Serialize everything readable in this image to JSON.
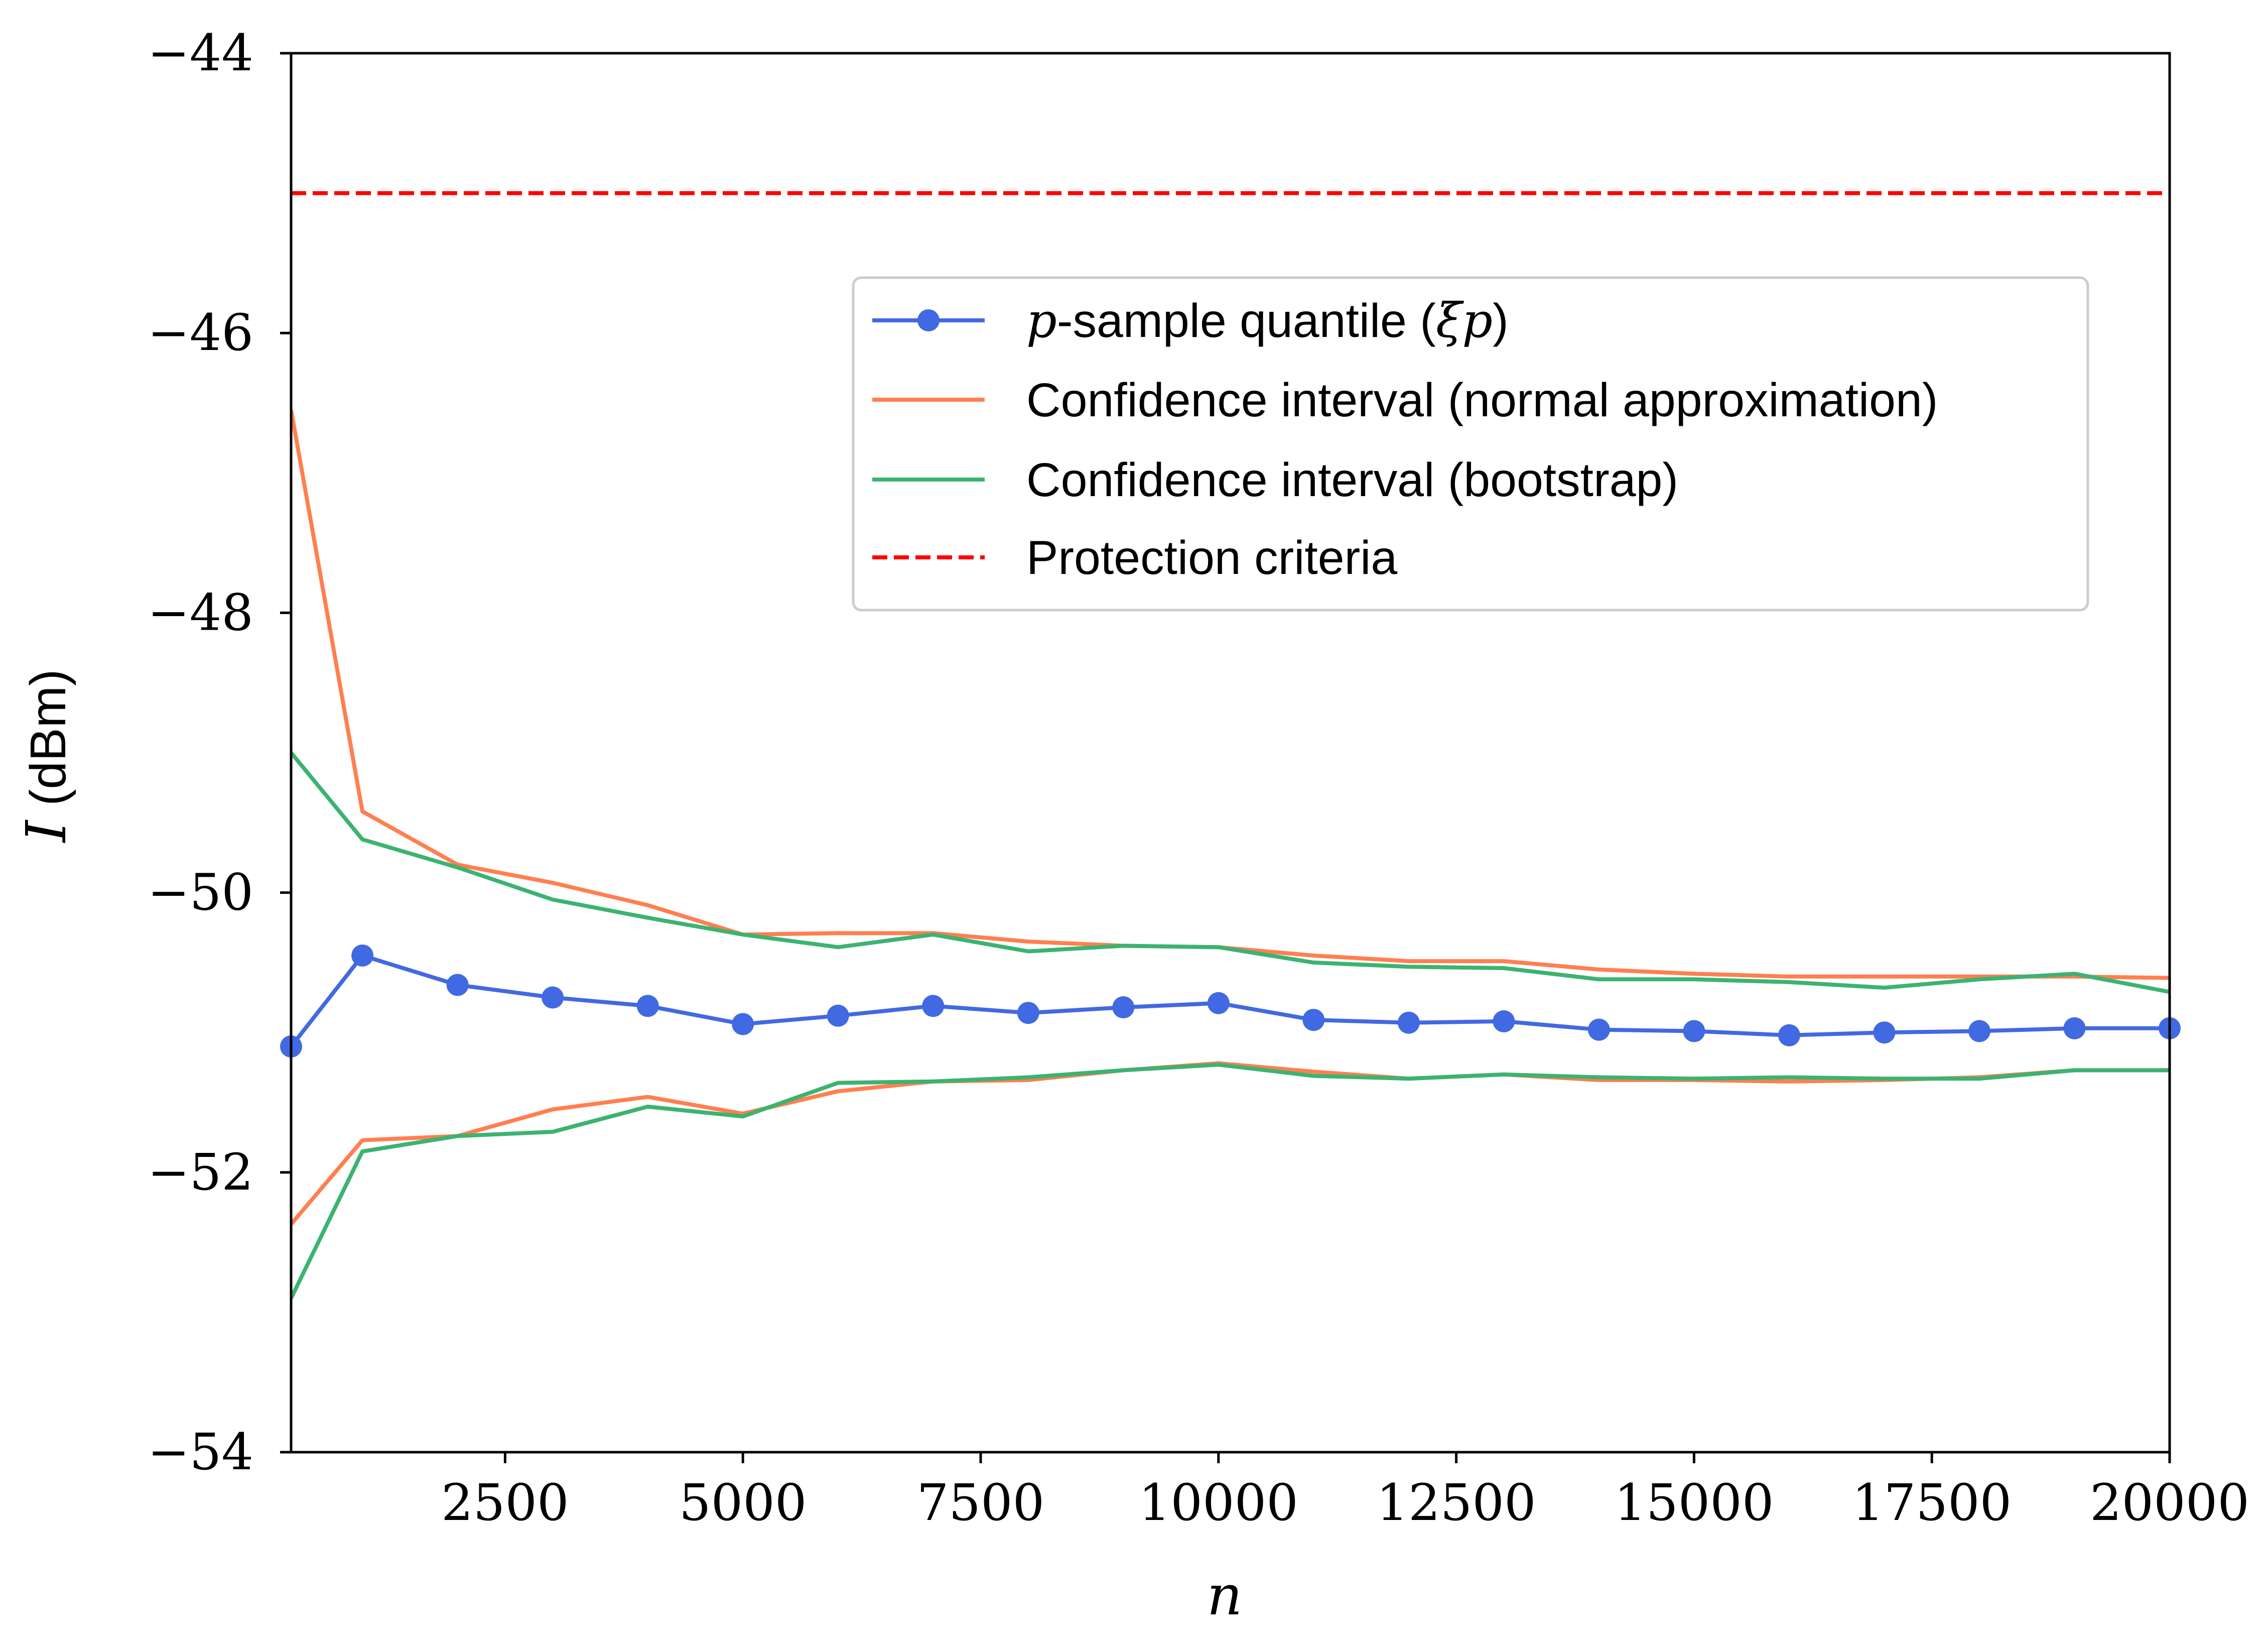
{
  "chart_data": {
    "type": "line",
    "title": "",
    "xlabel": "n",
    "ylabel_symbol": "I",
    "ylabel_unit": "(dBm)",
    "xlim": [
      250,
      20000
    ],
    "ylim": [
      -54,
      -44
    ],
    "xticks": [
      2500,
      5000,
      7500,
      10000,
      12500,
      15000,
      17500,
      20000
    ],
    "xtick_labels": [
      "2500",
      "5000",
      "7500",
      "10000",
      "12500",
      "15000",
      "17500",
      "20000"
    ],
    "yticks": [
      -54,
      -52,
      -50,
      -48,
      -46,
      -44
    ],
    "ytick_labels": [
      "−54",
      "−52",
      "−50",
      "−48",
      "−46",
      "−44"
    ],
    "grid": false,
    "legend_position": "upper-right",
    "x": [
      250,
      1000,
      2000,
      3000,
      4000,
      5000,
      6000,
      7000,
      8000,
      9000,
      10000,
      11000,
      12000,
      13000,
      14000,
      15000,
      16000,
      17000,
      18000,
      19000,
      20000
    ],
    "series": [
      {
        "key": "quantile",
        "legend_math": "p",
        "legend_text": "-sample quantile (",
        "legend_math_end": "ξp",
        "legend_close": ")",
        "color": "#4169e1",
        "style": "solid-markers",
        "values": [
          -51.1,
          -50.45,
          -50.66,
          -50.75,
          -50.81,
          -50.94,
          -50.88,
          -50.81,
          -50.86,
          -50.82,
          -50.79,
          -50.91,
          -50.93,
          -50.92,
          -50.98,
          -50.99,
          -51.02,
          -51.0,
          -50.99,
          -50.97,
          -50.97
        ]
      },
      {
        "key": "normal_upper",
        "legend": "Confidence interval (normal approximation)",
        "color": "#ff7f50",
        "style": "solid",
        "values": [
          -46.55,
          -49.42,
          -49.8,
          -49.93,
          -50.09,
          -50.3,
          -50.29,
          -50.29,
          -50.35,
          -50.38,
          -50.39,
          -50.45,
          -50.49,
          -50.49,
          -50.55,
          -50.58,
          -50.6,
          -50.6,
          -50.6,
          -50.6,
          -50.61
        ]
      },
      {
        "key": "normal_lower",
        "color": "#ff7f50",
        "style": "solid",
        "values": [
          -52.37,
          -51.77,
          -51.74,
          -51.55,
          -51.46,
          -51.58,
          -51.42,
          -51.35,
          -51.34,
          -51.27,
          -51.22,
          -51.28,
          -51.33,
          -51.3,
          -51.34,
          -51.34,
          -51.35,
          -51.34,
          -51.32,
          -51.27,
          -51.27
        ]
      },
      {
        "key": "bootstrap_upper",
        "legend": "Confidence interval (bootstrap)",
        "color": "#3cb371",
        "style": "solid",
        "values": [
          -49.0,
          -49.62,
          -49.82,
          -50.05,
          -50.18,
          -50.3,
          -50.39,
          -50.3,
          -50.42,
          -50.38,
          -50.39,
          -50.5,
          -50.53,
          -50.54,
          -50.62,
          -50.62,
          -50.64,
          -50.68,
          -50.62,
          -50.58,
          -50.71
        ]
      },
      {
        "key": "bootstrap_lower",
        "color": "#3cb371",
        "style": "solid",
        "values": [
          -52.9,
          -51.85,
          -51.74,
          -51.71,
          -51.53,
          -51.6,
          -51.36,
          -51.35,
          -51.32,
          -51.27,
          -51.23,
          -51.31,
          -51.33,
          -51.3,
          -51.32,
          -51.33,
          -51.32,
          -51.33,
          -51.33,
          -51.27,
          -51.27
        ]
      }
    ],
    "reference_line": {
      "legend": "Protection criteria",
      "y": -45,
      "color": "#ff0000",
      "style": "dashed"
    }
  }
}
